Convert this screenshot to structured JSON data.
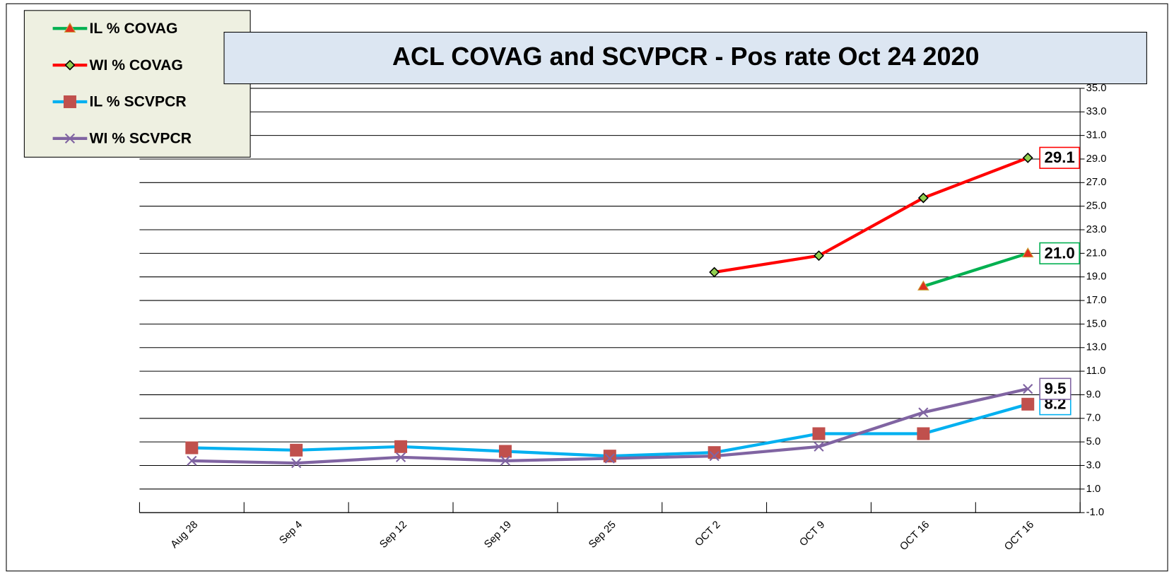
{
  "chart_data": {
    "type": "line",
    "title": "ACL COVAG and SCVPCR -  Pos rate Oct 24 2020",
    "categories": [
      "Aug 28",
      "Sep 4",
      "Sep 12",
      "Sep 19",
      "Sep 25",
      "OCT 2",
      "OCT 9",
      "OCT 16",
      "OCT 16"
    ],
    "series": [
      {
        "name": "IL % COVAG",
        "color": "#00b050",
        "marker": "triangle",
        "values": [
          null,
          null,
          null,
          null,
          null,
          null,
          null,
          18.2,
          21.0
        ],
        "value_labels": [
          null,
          null,
          null,
          null,
          null,
          null,
          null,
          null,
          "21.0"
        ]
      },
      {
        "name": "WI % COVAG",
        "color": "#ff0000",
        "marker": "diamond",
        "values": [
          null,
          null,
          null,
          null,
          null,
          19.4,
          20.8,
          25.7,
          29.1
        ],
        "value_labels": [
          null,
          null,
          null,
          null,
          null,
          null,
          null,
          null,
          "29.1"
        ]
      },
      {
        "name": "IL % SCVPCR",
        "color": "#00b0f0",
        "marker": "square",
        "values": [
          4.5,
          4.3,
          4.6,
          4.2,
          3.8,
          4.1,
          5.7,
          5.7,
          8.2
        ],
        "value_labels": [
          null,
          null,
          null,
          null,
          null,
          null,
          null,
          null,
          "8.2"
        ]
      },
      {
        "name": "WI % SCVPCR",
        "color": "#8064a2",
        "marker": "x",
        "values": [
          3.4,
          3.2,
          3.7,
          3.4,
          3.6,
          3.8,
          4.6,
          7.5,
          9.5
        ],
        "value_labels": [
          null,
          null,
          null,
          null,
          null,
          null,
          null,
          null,
          "9.5"
        ]
      }
    ],
    "ylim": [
      -1,
      35
    ],
    "yticks": [
      {
        "value": -1,
        "label": "-1.0"
      },
      {
        "value": 1,
        "label": "1.0"
      },
      {
        "value": 3,
        "label": "3.0"
      },
      {
        "value": 5,
        "label": "5.0"
      },
      {
        "value": 7,
        "label": "7.0"
      },
      {
        "value": 9,
        "label": "9.0"
      },
      {
        "value": 11,
        "label": "11.0"
      },
      {
        "value": 13,
        "label": "13.0"
      },
      {
        "value": 15,
        "label": "15.0"
      },
      {
        "value": 17,
        "label": "17.0"
      },
      {
        "value": 19,
        "label": "19.0"
      },
      {
        "value": 21,
        "label": "21.0"
      },
      {
        "value": 23,
        "label": "23.0"
      },
      {
        "value": 25,
        "label": "25.0"
      },
      {
        "value": 27,
        "label": "27.0"
      },
      {
        "value": 29,
        "label": "29.0"
      },
      {
        "value": 31,
        "label": "31.0"
      },
      {
        "value": 33,
        "label": "33.0"
      },
      {
        "value": 35,
        "label": "35.0"
      }
    ],
    "grid": true,
    "y_axis_side": "right",
    "legend": "top-left"
  }
}
